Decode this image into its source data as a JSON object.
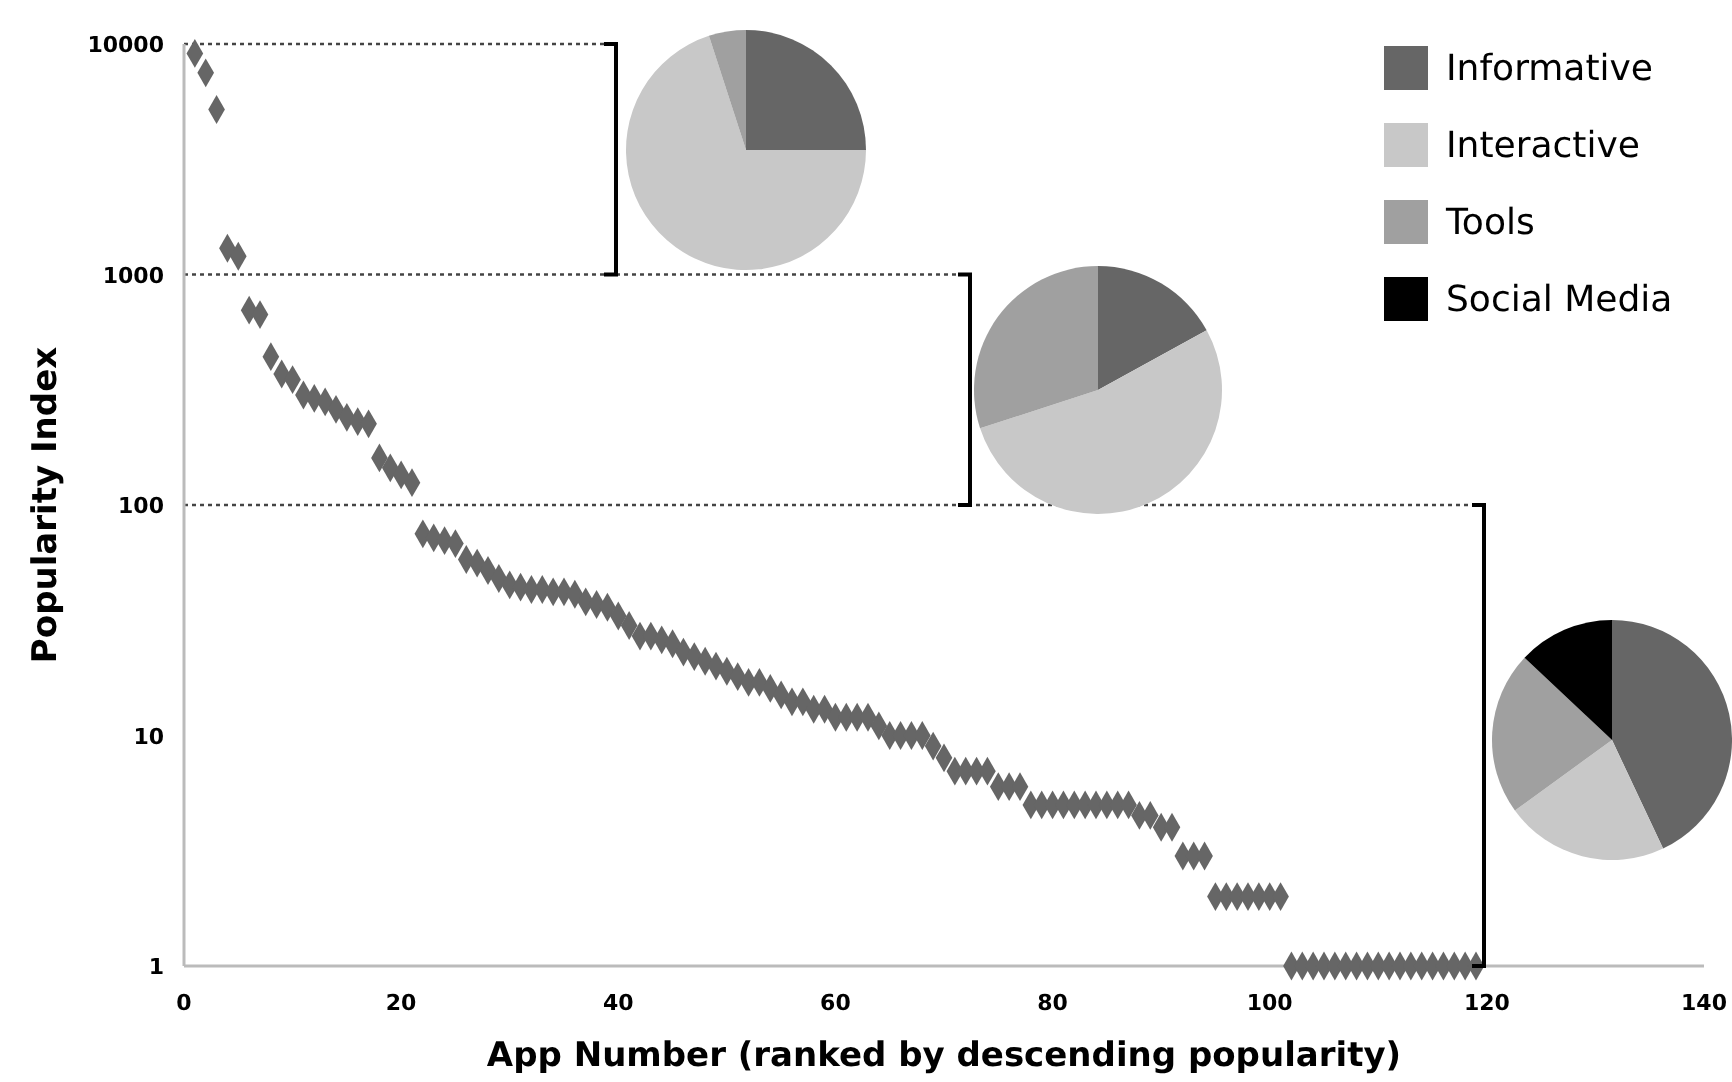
{
  "chart_data": [
    {
      "type": "scatter",
      "xlabel": "App Number (ranked by descending popularity)",
      "ylabel": "Popularity Index",
      "log": "y",
      "marker": "diamond",
      "xlim": [
        0,
        140
      ],
      "xticks": [
        0,
        20,
        40,
        60,
        80,
        100,
        120,
        140
      ],
      "ylim": [
        1,
        10000
      ],
      "yticks": [
        1,
        10,
        100,
        1000,
        10000
      ],
      "ref_lines": [
        {
          "axis": "y",
          "value": 10000,
          "line_style": "dotted",
          "color": "#444444"
        },
        {
          "axis": "y",
          "value": 1000,
          "line_style": "dotted",
          "color": "#444444"
        },
        {
          "axis": "y",
          "value": 100,
          "line_style": "dotted",
          "color": "#444444"
        }
      ],
      "series": [
        {
          "color": "#666666",
          "x": [
            1,
            2,
            3,
            4,
            5,
            6,
            7,
            8,
            9,
            10,
            11,
            12,
            13,
            14,
            15,
            16,
            17,
            18,
            19,
            20,
            21,
            22,
            23,
            24,
            25,
            26,
            27,
            28,
            29,
            30,
            31,
            32,
            33,
            34,
            35,
            36,
            37,
            38,
            39,
            40,
            41,
            42,
            43,
            44,
            45,
            46,
            47,
            48,
            49,
            50,
            51,
            52,
            53,
            54,
            55,
            56,
            57,
            58,
            59,
            60,
            61,
            62,
            63,
            64,
            65,
            66,
            67,
            68,
            69,
            70,
            71,
            72,
            73,
            74,
            75,
            76,
            77,
            78,
            79,
            80,
            81,
            82,
            83,
            84,
            85,
            86,
            87,
            88,
            89,
            90,
            91,
            92,
            93,
            94,
            95,
            96,
            97,
            98,
            99,
            100,
            101,
            102,
            103,
            104,
            105,
            106,
            107,
            108,
            109,
            110,
            111,
            112,
            113,
            114,
            115,
            116,
            117,
            118,
            119
          ],
          "values": [
            9100,
            7500,
            5200,
            1300,
            1200,
            700,
            670,
            440,
            370,
            350,
            300,
            290,
            280,
            260,
            240,
            230,
            225,
            160,
            145,
            135,
            125,
            75,
            72,
            70,
            68,
            58,
            56,
            52,
            48,
            45,
            44,
            43,
            43,
            42,
            42,
            41,
            38,
            37,
            36,
            33,
            30,
            27,
            27,
            26,
            25,
            23,
            22,
            21,
            20,
            19,
            18,
            17,
            17,
            16,
            15,
            14,
            14,
            13,
            13,
            12,
            12,
            12,
            12,
            11,
            10,
            10,
            10,
            10,
            9,
            8,
            7,
            7,
            7,
            7,
            6,
            6,
            6,
            5,
            5,
            5,
            5,
            5,
            5,
            5,
            5,
            5,
            5,
            4.5,
            4.5,
            4,
            4,
            3,
            3,
            3,
            2,
            2,
            2,
            2,
            2,
            2,
            2,
            1,
            1,
            1,
            1,
            1,
            1,
            1,
            1,
            1,
            1,
            1,
            1,
            1,
            1,
            1,
            1,
            1,
            1
          ]
        }
      ]
    },
    {
      "type": "pie",
      "categories": [
        "Informative",
        "Interactive",
        "Tools",
        "Social Media"
      ],
      "values": [
        25,
        70,
        5,
        0
      ],
      "colors": [
        "#666666",
        "#c8c8c8",
        "#a0a0a0",
        "#000000"
      ],
      "legend": "right"
    },
    {
      "type": "pie",
      "categories": [
        null,
        null,
        null,
        null
      ],
      "values": [
        17,
        53,
        30,
        0
      ],
      "colors": [
        "#666666",
        "#c8c8c8",
        "#a0a0a0",
        "#000000"
      ]
    },
    {
      "type": "pie",
      "categories": [
        null,
        null,
        null,
        null
      ],
      "values": [
        43,
        22,
        22,
        13
      ],
      "colors": [
        "#666666",
        "#c8c8c8",
        "#a0a0a0",
        "#000000"
      ]
    }
  ]
}
